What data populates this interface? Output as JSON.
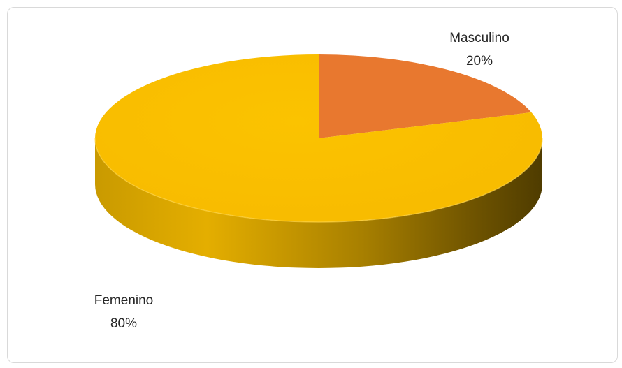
{
  "chart_data": {
    "type": "pie",
    "style": "3d",
    "categories": [
      "Femenino",
      "Masculino"
    ],
    "values": [
      80,
      20
    ],
    "labels": [
      "80%",
      "20%"
    ],
    "colors": [
      "#F8BB00",
      "#E8782F"
    ],
    "title": "",
    "legend": "none"
  }
}
